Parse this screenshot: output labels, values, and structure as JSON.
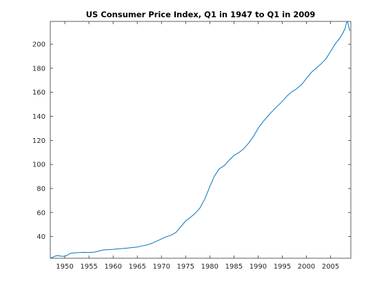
{
  "chart_data": {
    "type": "line",
    "title": "US Consumer Price Index, Q1 in 1947 to Q1 in 2009",
    "xlabel": "",
    "ylabel": "",
    "xlim": [
      1947,
      2009.2
    ],
    "ylim": [
      22,
      219
    ],
    "xticks": [
      1950,
      1955,
      1960,
      1965,
      1970,
      1975,
      1980,
      1985,
      1990,
      1995,
      2000,
      2005
    ],
    "yticks": [
      40,
      60,
      80,
      100,
      120,
      140,
      160,
      180,
      200
    ],
    "grid": false,
    "legend": "none",
    "color": "#0072bd",
    "series": [
      {
        "x": [
          1947,
          1947.5,
          1948,
          1948.5,
          1949,
          1949.5,
          1950,
          1950.5,
          1951,
          1951.5,
          1952,
          1953,
          1954,
          1955,
          1956,
          1956.5,
          1957,
          1958,
          1959,
          1960,
          1961,
          1962,
          1963,
          1964,
          1965,
          1966,
          1967,
          1968,
          1969,
          1970,
          1971,
          1972,
          1973,
          1974,
          1975,
          1976,
          1977,
          1978,
          1979,
          1980,
          1981,
          1982,
          1983,
          1984,
          1985,
          1986,
          1987,
          1988,
          1989,
          1990,
          1991,
          1992,
          1993,
          1994,
          1995,
          1996,
          1997,
          1998,
          1999,
          2000,
          2001,
          2002,
          2003,
          2004,
          2005,
          2006,
          2007,
          2007.5,
          2008,
          2008.3,
          2008.5,
          2008.75,
          2009
        ],
        "y": [
          22,
          22.8,
          23.8,
          24.2,
          23.9,
          23.6,
          23.7,
          24.4,
          25.8,
          26.3,
          26.5,
          26.7,
          26.9,
          26.8,
          27.0,
          27.4,
          28.0,
          28.9,
          29.2,
          29.4,
          29.8,
          30.1,
          30.5,
          30.9,
          31.3,
          32.2,
          33.1,
          34.4,
          36.2,
          38.0,
          39.9,
          41.1,
          43.5,
          48.2,
          53.0,
          56.0,
          59.5,
          64.0,
          71.5,
          81.5,
          90.5,
          96.5,
          99.0,
          103.5,
          107.5,
          109.8,
          113.0,
          117.5,
          123.0,
          130.0,
          135.5,
          140.0,
          144.5,
          148.5,
          152.5,
          157.0,
          160.5,
          163.0,
          166.5,
          171.5,
          176.5,
          180.0,
          183.5,
          187.5,
          194.0,
          200.5,
          205.5,
          209.0,
          213.0,
          218.0,
          219.0,
          215.0,
          211.0
        ]
      }
    ]
  }
}
